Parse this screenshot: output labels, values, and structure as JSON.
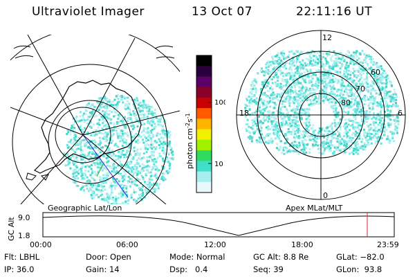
{
  "header": {
    "title": "Ultraviolet Imager",
    "date": "13 Oct 07",
    "time": "22:11:16 UT"
  },
  "geo_panel": {
    "label": "Geographic Lat/Lon"
  },
  "colorbar": {
    "label": "photon cm",
    "label_exp1": "-2",
    "label_mid": "s",
    "label_exp2": "-1",
    "ticks": [
      "100",
      "10"
    ],
    "colors": [
      "#000000",
      "#2a003c",
      "#5a0066",
      "#8a0028",
      "#c80000",
      "#ff5a00",
      "#ffb400",
      "#f0f000",
      "#a0f000",
      "#30dc60",
      "#40e0c8",
      "#a8eef0",
      "#e6f8fa"
    ]
  },
  "mlt_panel": {
    "label": "Apex MLat/MLT",
    "mlt_labels": {
      "top": "12",
      "bottom": "0",
      "left": "18",
      "right": "6"
    },
    "lat_labels": [
      "60",
      "70",
      "80"
    ]
  },
  "altitude_plot": {
    "ylabel": "GC Alt",
    "ymax": "9.0",
    "ymin": "1.8",
    "xticks": [
      "00:00",
      "06:00",
      "12:00",
      "18:00",
      "23:59"
    ]
  },
  "info": {
    "flt_label": "Flt:",
    "flt_value": "LBHL",
    "ip_label": "IP:",
    "ip_value": "36.0",
    "door_label": "Door:",
    "door_value": "Open",
    "gain_label": "Gain:",
    "gain_value": "14",
    "mode_label": "Mode:",
    "mode_value": "Normal",
    "dsp_label": "Dsp:",
    "dsp_value": "0.4",
    "gcalt_label": "GC Alt:",
    "gcalt_value": "8.8 Re",
    "seq_label": "Seq:",
    "seq_value": "39",
    "glat_label": "GLat:",
    "glat_value": "−82.0",
    "glon_label": "GLon:",
    "glon_value": "93.8"
  }
}
